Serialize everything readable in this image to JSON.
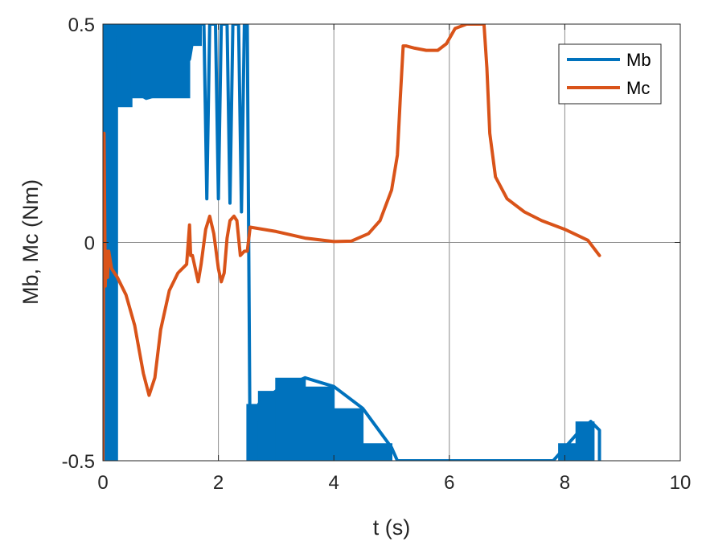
{
  "chart_data": {
    "type": "line",
    "title": "",
    "xlabel": "t (s)",
    "ylabel": "Mb, Mc (Nm)",
    "xlim": [
      0,
      10
    ],
    "ylim": [
      -0.5,
      0.5
    ],
    "xticks": [
      0,
      2,
      4,
      6,
      8,
      10
    ],
    "xtick_labels": [
      "0",
      "2",
      "4",
      "6",
      "8",
      "10"
    ],
    "yticks": [
      -0.5,
      0,
      0.5
    ],
    "ytick_labels": [
      "-0.5",
      "0",
      "0.5"
    ],
    "grid": true,
    "legend_position": "top-right",
    "series": [
      {
        "name": "Mb",
        "color": "#0072BD",
        "note_style": "oscillating",
        "bands": [
          {
            "x0": 0.0,
            "x1": 0.25,
            "lo": -0.5,
            "hi": 0.5
          },
          {
            "x0": 0.25,
            "x1": 0.5,
            "lo": 0.31,
            "hi": 0.5
          },
          {
            "x0": 0.5,
            "x1": 1.5,
            "lo": 0.33,
            "hi": 0.5
          },
          {
            "x0": 1.5,
            "x1": 1.7,
            "lo": 0.45,
            "hi": 0.5
          },
          {
            "x0": 2.5,
            "x1": 2.7,
            "lo": -0.5,
            "hi": -0.37
          },
          {
            "x0": 2.7,
            "x1": 3.0,
            "lo": -0.5,
            "hi": -0.34
          },
          {
            "x0": 3.0,
            "x1": 3.5,
            "lo": -0.5,
            "hi": -0.31
          },
          {
            "x0": 3.5,
            "x1": 4.0,
            "lo": -0.5,
            "hi": -0.33
          },
          {
            "x0": 4.0,
            "x1": 4.5,
            "lo": -0.5,
            "hi": -0.38
          },
          {
            "x0": 4.5,
            "x1": 5.0,
            "lo": -0.5,
            "hi": -0.46
          },
          {
            "x0": 7.9,
            "x1": 8.2,
            "lo": -0.5,
            "hi": -0.46
          },
          {
            "x0": 8.2,
            "x1": 8.5,
            "lo": -0.5,
            "hi": -0.41
          }
        ],
        "x": [
          0,
          0.05,
          0.1,
          0.15,
          0.2,
          0.25,
          0.3,
          0.5,
          0.75,
          1.0,
          1.25,
          1.5,
          1.6,
          1.7,
          1.75,
          1.8,
          1.85,
          1.9,
          1.95,
          2.0,
          2.05,
          2.1,
          2.15,
          2.2,
          2.25,
          2.3,
          2.35,
          2.4,
          2.45,
          2.5,
          2.55,
          2.7,
          3.0,
          3.5,
          4.0,
          4.5,
          5.0,
          5.1,
          6.0,
          7.0,
          7.8,
          8.0,
          8.2,
          8.45,
          8.6,
          8.6
        ],
        "y": [
          0.5,
          -0.5,
          0.5,
          -0.5,
          0.5,
          0.5,
          0.36,
          0.35,
          0.33,
          0.34,
          0.36,
          0.42,
          0.5,
          0.5,
          0.5,
          0.1,
          0.5,
          0.5,
          0.5,
          0.1,
          0.5,
          0.5,
          0.5,
          0.09,
          0.5,
          0.5,
          0.5,
          0.07,
          0.5,
          0.5,
          -0.5,
          -0.37,
          -0.34,
          -0.31,
          -0.33,
          -0.38,
          -0.47,
          -0.5,
          -0.5,
          -0.5,
          -0.5,
          -0.47,
          -0.44,
          -0.41,
          -0.43,
          -0.5
        ]
      },
      {
        "name": "Mc",
        "color": "#D95319",
        "x": [
          0,
          0.02,
          0.04,
          0.06,
          0.08,
          0.1,
          0.15,
          0.25,
          0.4,
          0.55,
          0.7,
          0.8,
          0.9,
          1.0,
          1.15,
          1.3,
          1.45,
          1.5,
          1.52,
          1.55,
          1.6,
          1.65,
          1.7,
          1.78,
          1.85,
          1.92,
          2.0,
          2.05,
          2.1,
          2.15,
          2.2,
          2.27,
          2.32,
          2.38,
          2.45,
          2.5,
          2.55,
          3.0,
          3.5,
          4.0,
          4.3,
          4.6,
          4.8,
          5.0,
          5.1,
          5.15,
          5.2,
          5.25,
          5.4,
          5.6,
          5.8,
          5.95,
          6.1,
          6.3,
          6.5,
          6.6,
          6.65,
          6.7,
          6.8,
          7.0,
          7.3,
          7.6,
          8.0,
          8.4,
          8.6
        ],
        "y": [
          -0.5,
          0.25,
          -0.1,
          -0.02,
          -0.08,
          -0.02,
          -0.06,
          -0.08,
          -0.12,
          -0.19,
          -0.3,
          -0.35,
          -0.31,
          -0.2,
          -0.11,
          -0.07,
          -0.05,
          0.04,
          -0.03,
          -0.03,
          -0.06,
          -0.09,
          -0.05,
          0.03,
          0.06,
          0.02,
          -0.06,
          -0.09,
          -0.07,
          0.01,
          0.05,
          0.06,
          0.05,
          -0.03,
          -0.02,
          -0.02,
          0.035,
          0.025,
          0.01,
          0.002,
          0.003,
          0.02,
          0.05,
          0.12,
          0.2,
          0.33,
          0.45,
          0.45,
          0.445,
          0.44,
          0.44,
          0.455,
          0.49,
          0.5,
          0.5,
          0.5,
          0.4,
          0.25,
          0.15,
          0.1,
          0.07,
          0.05,
          0.03,
          0.005,
          -0.03
        ]
      }
    ]
  }
}
